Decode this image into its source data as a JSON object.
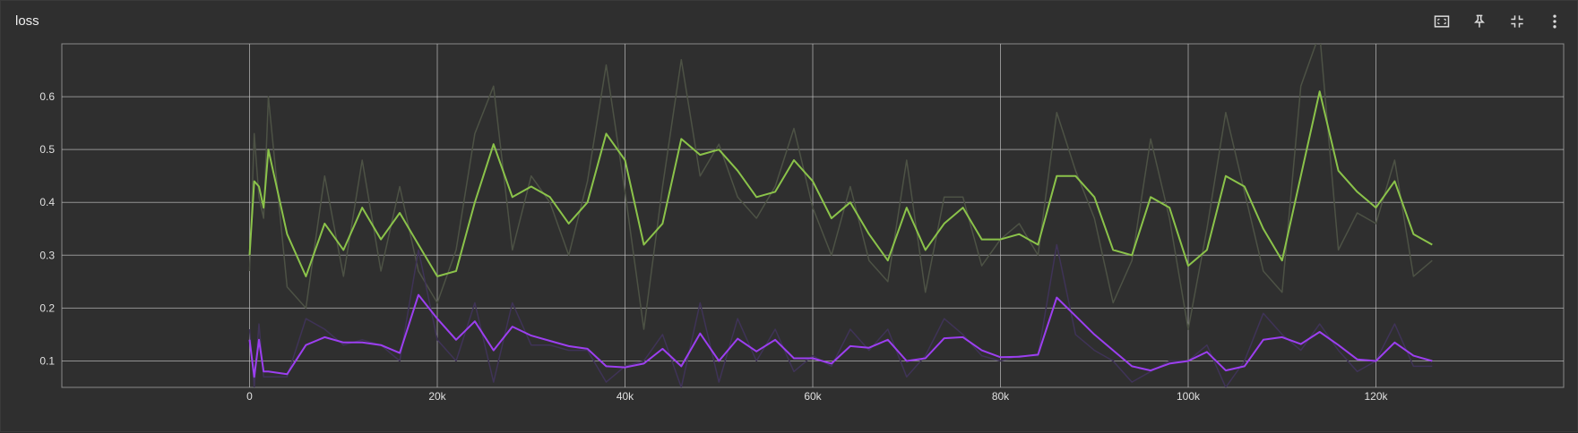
{
  "card": {
    "title": "loss",
    "toolbar": [
      {
        "name": "fit-domain-icon"
      },
      {
        "name": "pin-icon"
      },
      {
        "name": "collapse-icon"
      },
      {
        "name": "more-vert-icon"
      }
    ]
  },
  "colors": {
    "background": "#2f2f2f",
    "grid": "#bdbdbd",
    "axis_text": "#e0e0e0",
    "green_smoothed": "#8bc34a",
    "green_raw": "#4d5245",
    "purple_smoothed": "#9c3ff0",
    "purple_raw": "#3f3357"
  },
  "chart_data": {
    "type": "line",
    "title": "",
    "xlabel": "",
    "ylabel": "",
    "xlim": [
      -20000,
      140000
    ],
    "ylim": [
      0.05,
      0.7
    ],
    "x_ticks": [
      0,
      20000,
      40000,
      60000,
      80000,
      100000,
      120000
    ],
    "x_tick_labels": [
      "0",
      "20k",
      "40k",
      "60k",
      "80k",
      "100k",
      "120k"
    ],
    "y_ticks": [
      0.1,
      0.2,
      0.3,
      0.4,
      0.5,
      0.6
    ],
    "y_tick_labels": [
      "0.1",
      "0.2",
      "0.3",
      "0.4",
      "0.5",
      "0.6"
    ],
    "grid": true,
    "series": [
      {
        "role": "raw",
        "color": "#4d5245",
        "x": [
          0,
          500,
          1000,
          1500,
          2000,
          4000,
          6000,
          8000,
          10000,
          12000,
          14000,
          16000,
          18000,
          20000,
          22000,
          24000,
          26000,
          28000,
          30000,
          32000,
          34000,
          36000,
          38000,
          40000,
          42000,
          44000,
          46000,
          48000,
          50000,
          52000,
          54000,
          56000,
          58000,
          60000,
          62000,
          64000,
          66000,
          68000,
          70000,
          72000,
          74000,
          76000,
          78000,
          80000,
          82000,
          84000,
          86000,
          88000,
          90000,
          92000,
          94000,
          96000,
          98000,
          100000,
          102000,
          104000,
          106000,
          108000,
          110000,
          112000,
          114000,
          116000,
          118000,
          120000,
          122000,
          124000,
          126000
        ],
        "y": [
          0.27,
          0.53,
          0.41,
          0.37,
          0.6,
          0.24,
          0.2,
          0.45,
          0.26,
          0.48,
          0.27,
          0.43,
          0.27,
          0.21,
          0.31,
          0.53,
          0.62,
          0.31,
          0.45,
          0.4,
          0.3,
          0.44,
          0.66,
          0.42,
          0.16,
          0.43,
          0.67,
          0.45,
          0.51,
          0.41,
          0.37,
          0.43,
          0.54,
          0.39,
          0.3,
          0.43,
          0.29,
          0.25,
          0.48,
          0.23,
          0.41,
          0.41,
          0.28,
          0.33,
          0.36,
          0.3,
          0.57,
          0.46,
          0.37,
          0.21,
          0.29,
          0.52,
          0.37,
          0.16,
          0.35,
          0.57,
          0.42,
          0.27,
          0.23,
          0.62,
          0.72,
          0.31,
          0.38,
          0.36,
          0.48,
          0.26,
          0.29
        ]
      },
      {
        "role": "smoothed",
        "color": "#8bc34a",
        "x": [
          0,
          500,
          1000,
          1500,
          2000,
          4000,
          6000,
          8000,
          10000,
          12000,
          14000,
          16000,
          18000,
          20000,
          22000,
          24000,
          26000,
          28000,
          30000,
          32000,
          34000,
          36000,
          38000,
          40000,
          42000,
          44000,
          46000,
          48000,
          50000,
          52000,
          54000,
          56000,
          58000,
          60000,
          62000,
          64000,
          66000,
          68000,
          70000,
          72000,
          74000,
          76000,
          78000,
          80000,
          82000,
          84000,
          86000,
          88000,
          90000,
          92000,
          94000,
          96000,
          98000,
          100000,
          102000,
          104000,
          106000,
          108000,
          110000,
          112000,
          114000,
          116000,
          118000,
          120000,
          122000,
          124000,
          126000
        ],
        "y": [
          0.3,
          0.44,
          0.43,
          0.39,
          0.5,
          0.34,
          0.26,
          0.36,
          0.31,
          0.39,
          0.33,
          0.38,
          0.32,
          0.26,
          0.27,
          0.4,
          0.51,
          0.41,
          0.43,
          0.41,
          0.36,
          0.4,
          0.53,
          0.48,
          0.32,
          0.36,
          0.52,
          0.49,
          0.5,
          0.46,
          0.41,
          0.42,
          0.48,
          0.44,
          0.37,
          0.4,
          0.34,
          0.29,
          0.39,
          0.31,
          0.36,
          0.39,
          0.33,
          0.33,
          0.34,
          0.32,
          0.45,
          0.45,
          0.41,
          0.31,
          0.3,
          0.41,
          0.39,
          0.28,
          0.31,
          0.45,
          0.43,
          0.35,
          0.29,
          0.45,
          0.61,
          0.46,
          0.42,
          0.39,
          0.44,
          0.34,
          0.32
        ]
      },
      {
        "role": "raw",
        "color": "#3f3357",
        "x": [
          0,
          500,
          1000,
          1500,
          2000,
          4000,
          6000,
          8000,
          10000,
          12000,
          14000,
          16000,
          18000,
          20000,
          22000,
          24000,
          26000,
          28000,
          30000,
          32000,
          34000,
          36000,
          38000,
          40000,
          42000,
          44000,
          46000,
          48000,
          50000,
          52000,
          54000,
          56000,
          58000,
          60000,
          62000,
          64000,
          66000,
          68000,
          70000,
          72000,
          74000,
          76000,
          78000,
          80000,
          82000,
          84000,
          86000,
          88000,
          90000,
          92000,
          94000,
          96000,
          98000,
          100000,
          102000,
          104000,
          106000,
          108000,
          110000,
          112000,
          114000,
          116000,
          118000,
          120000,
          122000,
          124000,
          126000
        ],
        "y": [
          0.16,
          0.05,
          0.17,
          0.07,
          0.07,
          0.07,
          0.18,
          0.16,
          0.13,
          0.14,
          0.13,
          0.1,
          0.31,
          0.14,
          0.1,
          0.21,
          0.06,
          0.21,
          0.13,
          0.13,
          0.12,
          0.12,
          0.06,
          0.09,
          0.1,
          0.15,
          0.05,
          0.21,
          0.06,
          0.18,
          0.1,
          0.16,
          0.08,
          0.11,
          0.09,
          0.16,
          0.12,
          0.16,
          0.07,
          0.11,
          0.18,
          0.15,
          0.11,
          0.1,
          0.11,
          0.11,
          0.32,
          0.15,
          0.12,
          0.1,
          0.06,
          0.08,
          0.1,
          0.1,
          0.13,
          0.05,
          0.1,
          0.19,
          0.15,
          0.12,
          0.17,
          0.12,
          0.08,
          0.1,
          0.17,
          0.09,
          0.09
        ]
      },
      {
        "role": "smoothed",
        "color": "#9c3ff0",
        "x": [
          0,
          500,
          1000,
          1500,
          2000,
          4000,
          6000,
          8000,
          10000,
          12000,
          14000,
          16000,
          18000,
          20000,
          22000,
          24000,
          26000,
          28000,
          30000,
          32000,
          34000,
          36000,
          38000,
          40000,
          42000,
          44000,
          46000,
          48000,
          50000,
          52000,
          54000,
          56000,
          58000,
          60000,
          62000,
          64000,
          66000,
          68000,
          70000,
          72000,
          74000,
          76000,
          78000,
          80000,
          82000,
          84000,
          86000,
          88000,
          90000,
          92000,
          94000,
          96000,
          98000,
          100000,
          102000,
          104000,
          106000,
          108000,
          110000,
          112000,
          114000,
          116000,
          118000,
          120000,
          122000,
          124000,
          126000
        ],
        "y": [
          0.14,
          0.07,
          0.14,
          0.08,
          0.08,
          0.075,
          0.13,
          0.145,
          0.135,
          0.135,
          0.13,
          0.115,
          0.225,
          0.18,
          0.14,
          0.175,
          0.12,
          0.165,
          0.148,
          0.138,
          0.128,
          0.123,
          0.09,
          0.088,
          0.095,
          0.123,
          0.09,
          0.152,
          0.1,
          0.142,
          0.118,
          0.14,
          0.105,
          0.105,
          0.095,
          0.128,
          0.125,
          0.14,
          0.1,
          0.105,
          0.143,
          0.145,
          0.12,
          0.107,
          0.108,
          0.112,
          0.22,
          0.185,
          0.15,
          0.12,
          0.09,
          0.082,
          0.095,
          0.1,
          0.117,
          0.082,
          0.09,
          0.14,
          0.145,
          0.132,
          0.155,
          0.13,
          0.103,
          0.1,
          0.135,
          0.11,
          0.1
        ]
      }
    ]
  }
}
